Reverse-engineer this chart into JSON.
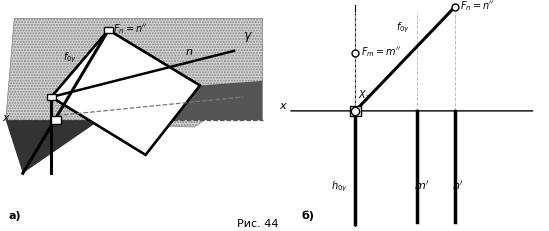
{
  "fig_width": 5.49,
  "fig_height": 2.31,
  "dpi": 100,
  "caption": "Рис. 44",
  "label_a": "а)",
  "label_b": "б)",
  "bg_color": "#ffffff"
}
